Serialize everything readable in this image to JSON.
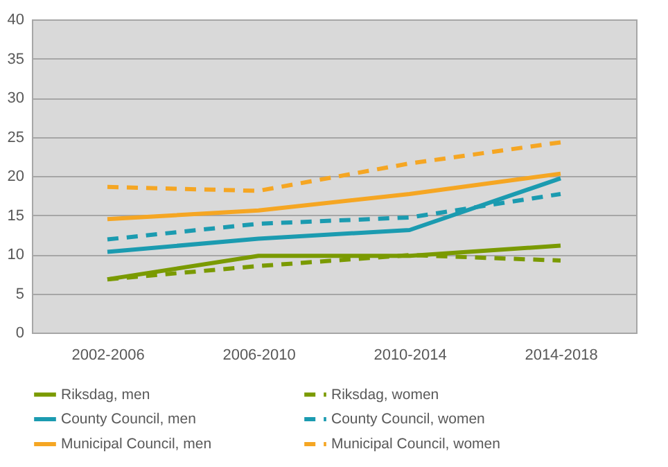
{
  "chart_data": {
    "type": "line",
    "categories": [
      "2002-2006",
      "2006-2010",
      "2010-2014",
      "2014-2018"
    ],
    "ylim": [
      0,
      40
    ],
    "yticks": [
      0,
      5,
      10,
      15,
      20,
      25,
      30,
      35,
      40
    ],
    "grid": "y",
    "legend": "bottom",
    "marker": "none",
    "series": [
      {
        "name": "Riksdag, men",
        "color": "#7a9a01",
        "line_style": "solid",
        "values": [
          6.8,
          9.8,
          9.8,
          11.1
        ]
      },
      {
        "name": "Riksdag, women",
        "color": "#7a9a01",
        "line_style": "dashed",
        "values": [
          6.8,
          8.5,
          9.9,
          9.2
        ]
      },
      {
        "name": "County Council, men",
        "color": "#1b9bb0",
        "line_style": "solid",
        "values": [
          10.3,
          12.0,
          13.1,
          19.7
        ]
      },
      {
        "name": "County Council, women",
        "color": "#1b9bb0",
        "line_style": "dashed",
        "values": [
          11.9,
          13.9,
          14.7,
          17.7
        ]
      },
      {
        "name": "Municipal Council, men",
        "color": "#f5a623",
        "line_style": "solid",
        "values": [
          14.5,
          15.6,
          17.7,
          20.3
        ]
      },
      {
        "name": "Municipal Council, women",
        "color": "#f5a623",
        "line_style": "dashed",
        "values": [
          18.6,
          18.1,
          21.6,
          24.3
        ]
      }
    ]
  }
}
